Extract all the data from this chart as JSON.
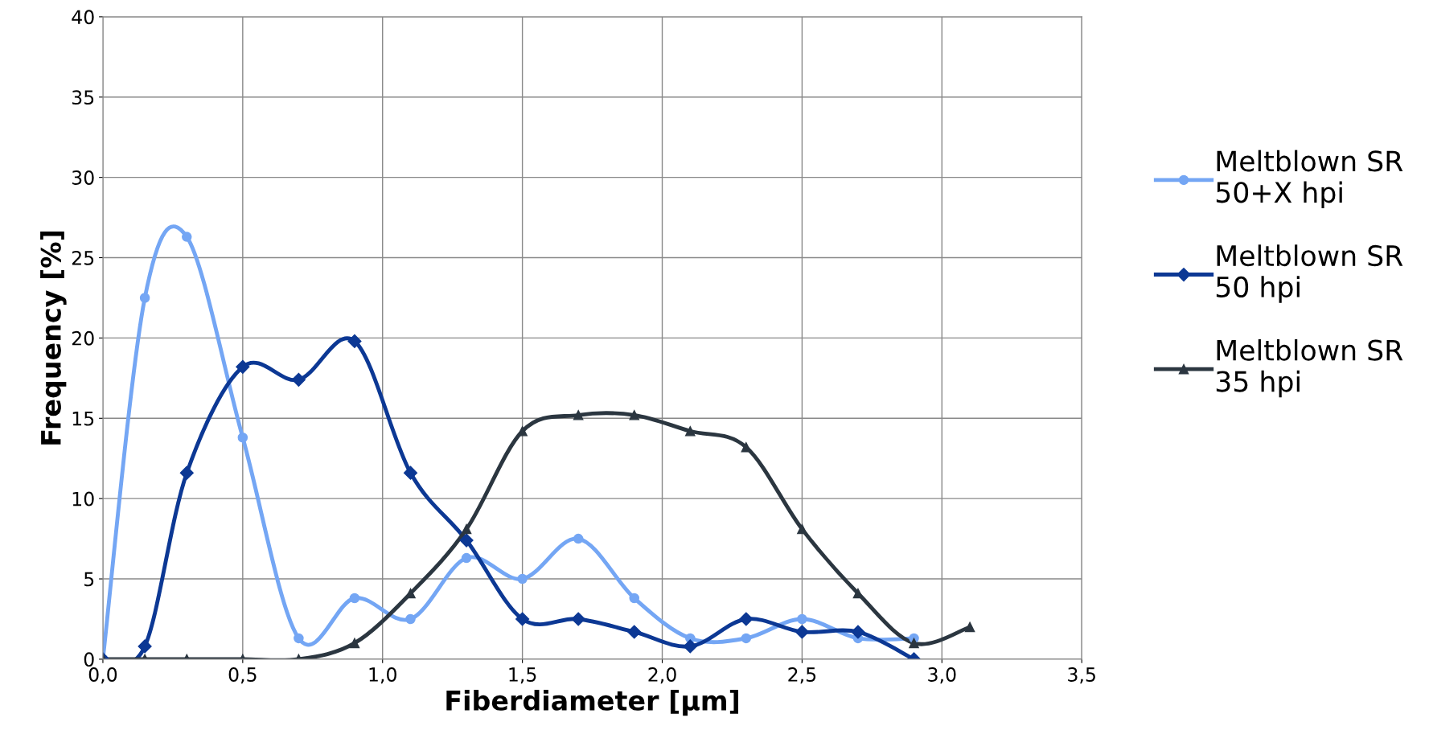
{
  "chart_data": {
    "type": "line",
    "xlabel": "Fiberdiameter [µm]",
    "ylabel": "Frequency [%]",
    "xlim": [
      0,
      3.5
    ],
    "ylim": [
      0,
      40
    ],
    "xticks": [
      {
        "value": 0,
        "label": "0,0"
      },
      {
        "value": 0.5,
        "label": "0,5"
      },
      {
        "value": 1,
        "label": "1,0"
      },
      {
        "value": 1.5,
        "label": "1,5"
      },
      {
        "value": 2,
        "label": "2,0"
      },
      {
        "value": 2.5,
        "label": "2,5"
      },
      {
        "value": 3,
        "label": "3,0"
      },
      {
        "value": 3.5,
        "label": "3,5"
      }
    ],
    "yticks": [
      0,
      5,
      10,
      15,
      20,
      25,
      30,
      35,
      40
    ],
    "grid": true,
    "legend": "right",
    "line_style": "solid",
    "series": [
      {
        "name": "Meltblown SR\n50+X hpi",
        "color": "#74a6f4",
        "marker": "circle",
        "x": [
          0,
          0.15,
          0.3,
          0.5,
          0.7,
          0.9,
          1.1,
          1.3,
          1.5,
          1.7,
          1.9,
          2.1,
          2.3,
          2.5,
          2.7,
          2.9
        ],
        "values": [
          0,
          22.5,
          26.3,
          13.8,
          1.3,
          3.8,
          2.5,
          6.3,
          5,
          7.5,
          3.8,
          1.3,
          1.3,
          2.5,
          1.3,
          1.3
        ]
      },
      {
        "name": "Meltblown SR\n50 hpi",
        "color": "#0c3894",
        "marker": "diamond",
        "x": [
          0,
          0.15,
          0.3,
          0.5,
          0.7,
          0.9,
          1.1,
          1.3,
          1.5,
          1.7,
          1.9,
          2.1,
          2.3,
          2.5,
          2.7,
          2.9
        ],
        "values": [
          0,
          0.8,
          11.6,
          18.2,
          17.4,
          19.8,
          11.6,
          7.4,
          2.5,
          2.5,
          1.7,
          0.8,
          2.5,
          1.7,
          1.7,
          0
        ]
      },
      {
        "name": "Meltblown SR\n35 hpi",
        "color": "#2b3640",
        "marker": "triangle",
        "x": [
          0,
          0.15,
          0.3,
          0.5,
          0.7,
          0.9,
          1.1,
          1.3,
          1.5,
          1.7,
          1.9,
          2.1,
          2.3,
          2.5,
          2.7,
          2.9,
          3.1
        ],
        "values": [
          0,
          0,
          0,
          0,
          0,
          1,
          4.1,
          8.1,
          14.2,
          15.2,
          15.2,
          14.2,
          13.2,
          8.1,
          4.1,
          1,
          2
        ]
      }
    ]
  }
}
